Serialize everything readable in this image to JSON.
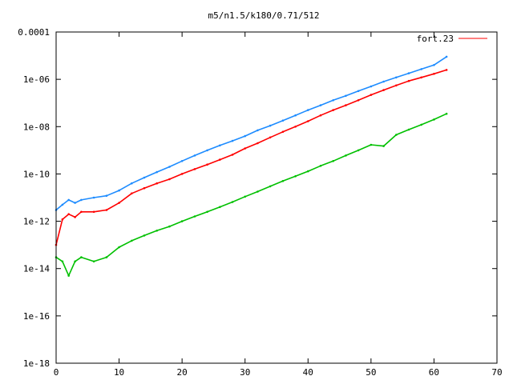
{
  "chart_data": {
    "type": "line",
    "title": "m5/n1.5/k180/0.71/512",
    "xlabel": "",
    "ylabel": "",
    "xlim": [
      0,
      70
    ],
    "ylim": [
      1e-18,
      0.0001
    ],
    "yscale": "log",
    "grid": false,
    "legend_position": "top-right",
    "x_ticks": [
      0,
      10,
      20,
      30,
      40,
      50,
      60,
      70
    ],
    "x_tick_labels": [
      "0",
      "10",
      "20",
      "30",
      "40",
      "50",
      "60",
      "70"
    ],
    "y_ticks": [
      1e-18,
      1e-16,
      1e-14,
      1e-12,
      1e-10,
      1e-08,
      1e-06,
      0.0001
    ],
    "y_tick_labels": [
      "1e-18",
      "1e-16",
      "1e-14",
      "1e-12",
      "1e-10",
      "1e-08",
      "1e-06",
      "0.0001"
    ],
    "series": [
      {
        "name": "fort.23",
        "color": "#ff0000",
        "x": [
          0,
          1,
          2,
          3,
          4,
          6,
          8,
          10,
          12,
          14,
          16,
          18,
          20,
          22,
          24,
          26,
          28,
          30,
          32,
          34,
          36,
          38,
          40,
          42,
          44,
          46,
          48,
          50,
          52,
          54,
          56,
          58,
          60,
          62
        ],
        "y": [
          1e-13,
          1.2e-12,
          2e-12,
          1.5e-12,
          2.5e-12,
          2.5e-12,
          3e-12,
          6e-12,
          1.5e-11,
          2.5e-11,
          4e-11,
          6e-11,
          1e-10,
          1.6e-10,
          2.5e-10,
          4e-10,
          6.5e-10,
          1.2e-09,
          2e-09,
          3.5e-09,
          6e-09,
          1e-08,
          1.7e-08,
          3e-08,
          5e-08,
          8e-08,
          1.3e-07,
          2.2e-07,
          3.5e-07,
          5.5e-07,
          8.5e-07,
          1.2e-06,
          1.7e-06,
          2.5e-06
        ]
      },
      {
        "name": "",
        "color": "#1e8cff",
        "x": [
          0,
          1,
          2,
          3,
          4,
          6,
          8,
          10,
          12,
          14,
          16,
          18,
          20,
          22,
          24,
          26,
          28,
          30,
          32,
          34,
          36,
          38,
          40,
          42,
          44,
          46,
          48,
          50,
          52,
          54,
          56,
          58,
          60,
          62
        ],
        "y": [
          3e-12,
          5e-12,
          8e-12,
          6e-12,
          8e-12,
          1e-11,
          1.2e-11,
          2e-11,
          4e-11,
          7e-11,
          1.2e-10,
          2e-10,
          3.5e-10,
          6e-10,
          1e-09,
          1.6e-09,
          2.5e-09,
          4e-09,
          7e-09,
          1.1e-08,
          1.8e-08,
          3e-08,
          5e-08,
          8e-08,
          1.3e-07,
          2e-07,
          3.2e-07,
          5e-07,
          8e-07,
          1.2e-06,
          1.8e-06,
          2.7e-06,
          4e-06,
          9e-06
        ]
      },
      {
        "name": "",
        "color": "#00c000",
        "x": [
          0,
          1,
          2,
          3,
          4,
          6,
          8,
          10,
          12,
          14,
          16,
          18,
          20,
          22,
          24,
          26,
          28,
          30,
          32,
          34,
          36,
          38,
          40,
          42,
          44,
          46,
          48,
          50,
          52,
          54,
          56,
          58,
          60,
          62
        ],
        "y": [
          3e-14,
          2e-14,
          5e-15,
          2e-14,
          3e-14,
          2e-14,
          3e-14,
          8e-14,
          1.5e-13,
          2.5e-13,
          4e-13,
          6e-13,
          1e-12,
          1.6e-12,
          2.5e-12,
          4e-12,
          6.5e-12,
          1.1e-11,
          1.8e-11,
          3e-11,
          5e-11,
          8e-11,
          1.3e-10,
          2.2e-10,
          3.5e-10,
          6e-10,
          1e-09,
          1.7e-09,
          1.5e-09,
          4.5e-09,
          7.5e-09,
          1.2e-08,
          2e-08,
          3.5e-08
        ]
      }
    ]
  }
}
